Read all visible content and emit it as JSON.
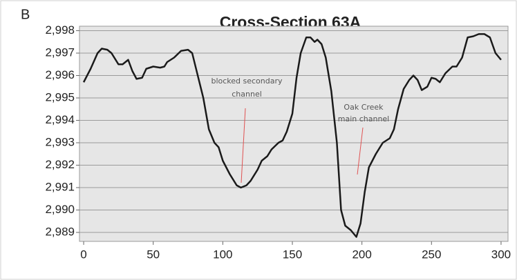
{
  "panel_label": "B",
  "chart_data": {
    "type": "line",
    "title": "Cross-Section 63A",
    "x": [
      0,
      5,
      10,
      13,
      17,
      20,
      25,
      28,
      32,
      35,
      38,
      42,
      45,
      50,
      55,
      58,
      60,
      65,
      70,
      75,
      78,
      82,
      86,
      90,
      94,
      97,
      100,
      105,
      110,
      113,
      117,
      120,
      125,
      128,
      132,
      135,
      140,
      143,
      146,
      150,
      153,
      156,
      160,
      163,
      166,
      168,
      171,
      174,
      178,
      182,
      185,
      188,
      192,
      196,
      199,
      202,
      205,
      210,
      215,
      220,
      223,
      226,
      230,
      234,
      237,
      240,
      243,
      247,
      250,
      253,
      256,
      260,
      265,
      268,
      272,
      276,
      280,
      284,
      288,
      292,
      296,
      300
    ],
    "series": [
      {
        "name": null,
        "color": "#1a1a1a",
        "values": [
          2995.7,
          2996.3,
          2997.0,
          2997.2,
          2997.15,
          2997.0,
          2996.5,
          2996.5,
          2996.7,
          2996.2,
          2995.85,
          2995.9,
          2996.3,
          2996.4,
          2996.35,
          2996.4,
          2996.6,
          2996.8,
          2997.1,
          2997.15,
          2997.0,
          2996.0,
          2995.0,
          2993.6,
          2993.0,
          2992.8,
          2992.2,
          2991.6,
          2991.1,
          2991.0,
          2991.1,
          2991.3,
          2991.8,
          2992.2,
          2992.4,
          2992.7,
          2993.0,
          2993.1,
          2993.5,
          2994.3,
          2995.9,
          2997.0,
          2997.7,
          2997.7,
          2997.5,
          2997.6,
          2997.4,
          2996.8,
          2995.3,
          2993.0,
          2990.0,
          2989.3,
          2989.1,
          2988.8,
          2989.4,
          2990.8,
          2991.9,
          2992.5,
          2993.0,
          2993.2,
          2993.6,
          2994.5,
          2995.4,
          2995.8,
          2996.0,
          2995.8,
          2995.35,
          2995.5,
          2995.9,
          2995.85,
          2995.7,
          2996.1,
          2996.4,
          2996.4,
          2996.8,
          2997.7,
          2997.75,
          2997.85,
          2997.85,
          2997.7,
          2997.0,
          2996.7
        ]
      }
    ],
    "xlim": [
      -3,
      305
    ],
    "xticks": [
      0,
      50,
      100,
      150,
      200,
      250,
      300
    ],
    "ylim": [
      2988.6,
      2998.2
    ],
    "yticks": [
      {
        "value": 2989,
        "label": "2,989"
      },
      {
        "value": 2990,
        "label": "2,990"
      },
      {
        "value": 2991,
        "label": "2,991"
      },
      {
        "value": 2992,
        "label": "2,992"
      },
      {
        "value": 2993,
        "label": "2,993"
      },
      {
        "value": 2994,
        "label": "2,994"
      },
      {
        "value": 2995,
        "label": "2,995"
      },
      {
        "value": 2996,
        "label": "2,996"
      },
      {
        "value": 2997,
        "label": "2,997"
      },
      {
        "value": 2998,
        "label": "2,998"
      }
    ],
    "grid": true,
    "annotations": [
      {
        "lines": [
          "blocked secondary",
          "channel"
        ]
      },
      {
        "lines": [
          "Oak Creek",
          "main channel"
        ]
      }
    ]
  }
}
